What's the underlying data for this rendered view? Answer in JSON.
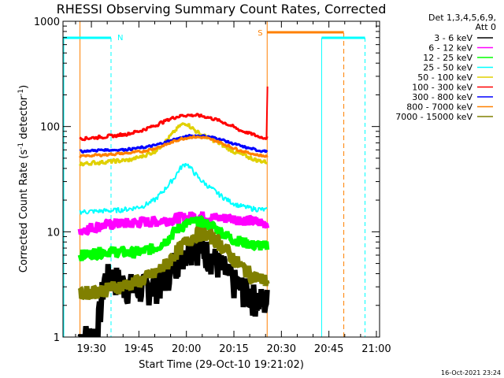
{
  "chart_data": {
    "type": "line",
    "title": "RHESSI Observing Summary Count Rates, Corrected",
    "xlabel": "Start Time (29-Oct-10 19:21:02)",
    "ylabel": "Corrected Count Rate (s⁻¹ detector⁻¹)",
    "ylabel_main": "Corrected Count Rate (s",
    "ylabel_sup1": "-1",
    "ylabel_mid": " detector",
    "ylabel_sup2": "-1",
    "ylabel_end": ")",
    "yscale": "log",
    "ylim": [
      1,
      1000
    ],
    "xlim": [
      "19:21:02",
      "21:01:00"
    ],
    "x_ticks": [
      "19:30",
      "19:45",
      "20:00",
      "20:15",
      "20:30",
      "20:45",
      "21:00"
    ],
    "y_ticks": [
      "1",
      "10",
      "100",
      "1000"
    ],
    "timestamp": "16-Oct-2021 23:24",
    "legend_header": [
      "Det 1,3,4,5,6,9,",
      "Att 0"
    ],
    "x_unit": "minutes after 19:00",
    "series": [
      {
        "name": "3 - 6 keV",
        "color": "#000000",
        "width": 7,
        "x": [
          26.4,
          28,
          30,
          32,
          34,
          36,
          38,
          40,
          42,
          44,
          46,
          48,
          50,
          52,
          54,
          56,
          58,
          60,
          62,
          64,
          66,
          68,
          70,
          72,
          74,
          76,
          78,
          80,
          82,
          84,
          85.5
        ],
        "y": [
          1,
          1,
          1,
          1.2,
          3.5,
          3.8,
          3.5,
          3.2,
          3,
          3,
          2.9,
          3,
          3.1,
          3.3,
          4,
          5,
          6,
          7,
          7.5,
          7.2,
          6.5,
          5.8,
          5,
          4.3,
          3.6,
          3.1,
          2.8,
          2.5,
          2.3,
          2.2,
          2.2
        ]
      },
      {
        "name": "6 - 12 keV",
        "color": "#ff00ff",
        "width": 6,
        "x": [
          26.4,
          30,
          34,
          38,
          42,
          46,
          50,
          54,
          58,
          62,
          66,
          70,
          74,
          78,
          82,
          85.5
        ],
        "y": [
          10.5,
          11,
          11.5,
          12,
          12,
          12.5,
          12.5,
          13,
          13.5,
          14,
          14,
          13.5,
          13.5,
          13,
          12.5,
          12
        ]
      },
      {
        "name": "12 - 25 keV",
        "color": "#00ff00",
        "width": 6,
        "x": [
          26.4,
          30,
          34,
          38,
          42,
          46,
          50,
          54,
          57,
          60,
          63,
          66,
          69,
          72,
          75,
          78,
          81,
          85.5
        ],
        "y": [
          6,
          6.2,
          6.5,
          6.5,
          6.3,
          6.5,
          7,
          8.5,
          10.5,
          12,
          12.5,
          12,
          11,
          9.5,
          8.5,
          8,
          7.5,
          7.3
        ]
      },
      {
        "name": "25 - 50 keV",
        "color": "#00ffff",
        "width": 2,
        "x": [
          26.4,
          30,
          34,
          38,
          42,
          46,
          50,
          53,
          56,
          58,
          60,
          62,
          64,
          67,
          70,
          73,
          76,
          79,
          82,
          85.5
        ],
        "y": [
          15.5,
          15.6,
          15.8,
          16,
          16.5,
          17.5,
          20,
          25,
          32,
          40,
          45,
          38,
          32,
          27,
          23,
          20,
          18,
          17,
          16.5,
          16
        ]
      },
      {
        "name": "50 - 100 keV",
        "color": "#e0d000",
        "width": 3,
        "x": [
          26.4,
          30,
          34,
          38,
          42,
          46,
          50,
          53,
          56,
          58,
          60,
          62,
          64,
          67,
          70,
          73,
          76,
          79,
          82,
          85.5
        ],
        "y": [
          44,
          45,
          46,
          47,
          48,
          52,
          58,
          70,
          88,
          102,
          108,
          96,
          86,
          78,
          70,
          62,
          56,
          52,
          48,
          46
        ]
      },
      {
        "name": "100 - 300 keV",
        "color": "#ff0000",
        "width": 3,
        "x": [
          26.4,
          30,
          34,
          38,
          42,
          46,
          50,
          53,
          56,
          59,
          62,
          65,
          68,
          71,
          74,
          77,
          80,
          83,
          85.5
        ],
        "y": [
          77,
          78,
          80,
          82,
          86,
          92,
          102,
          112,
          122,
          128,
          128,
          126,
          120,
          112,
          102,
          92,
          86,
          80,
          78
        ]
      },
      {
        "name": "300 - 800 keV",
        "color": "#0000ff",
        "width": 3,
        "x": [
          26.4,
          30,
          34,
          38,
          42,
          46,
          50,
          54,
          58,
          62,
          66,
          70,
          74,
          78,
          82,
          85.5
        ],
        "y": [
          58,
          59,
          60,
          60,
          61,
          63,
          66,
          72,
          78,
          82,
          81,
          77,
          70,
          64,
          60,
          58
        ]
      },
      {
        "name": "800 - 7000 keV",
        "color": "#ff8000",
        "width": 3,
        "x": [
          26.4,
          30,
          34,
          38,
          42,
          46,
          50,
          54,
          58,
          62,
          66,
          70,
          74,
          78,
          82,
          85.5
        ],
        "y": [
          52,
          53,
          54,
          55,
          56,
          58,
          62,
          68,
          76,
          80,
          78,
          72,
          64,
          58,
          54,
          52
        ]
      },
      {
        "name": "7000 - 15000 keV",
        "color": "#808000",
        "width": 7,
        "x": [
          26.4,
          30,
          34,
          38,
          42,
          46,
          50,
          54,
          57,
          60,
          63,
          66,
          69,
          72,
          75,
          78,
          81,
          85.5
        ],
        "y": [
          2.6,
          2.7,
          2.8,
          3,
          3.2,
          3.5,
          4,
          5,
          6.5,
          8,
          9.5,
          9.5,
          8.5,
          7,
          5.5,
          4.5,
          3.8,
          3.4
        ]
      }
    ],
    "markers": [
      {
        "label": "N",
        "color": "#00ffff"
      },
      {
        "label": "S",
        "color": "#ff8000"
      }
    ]
  }
}
